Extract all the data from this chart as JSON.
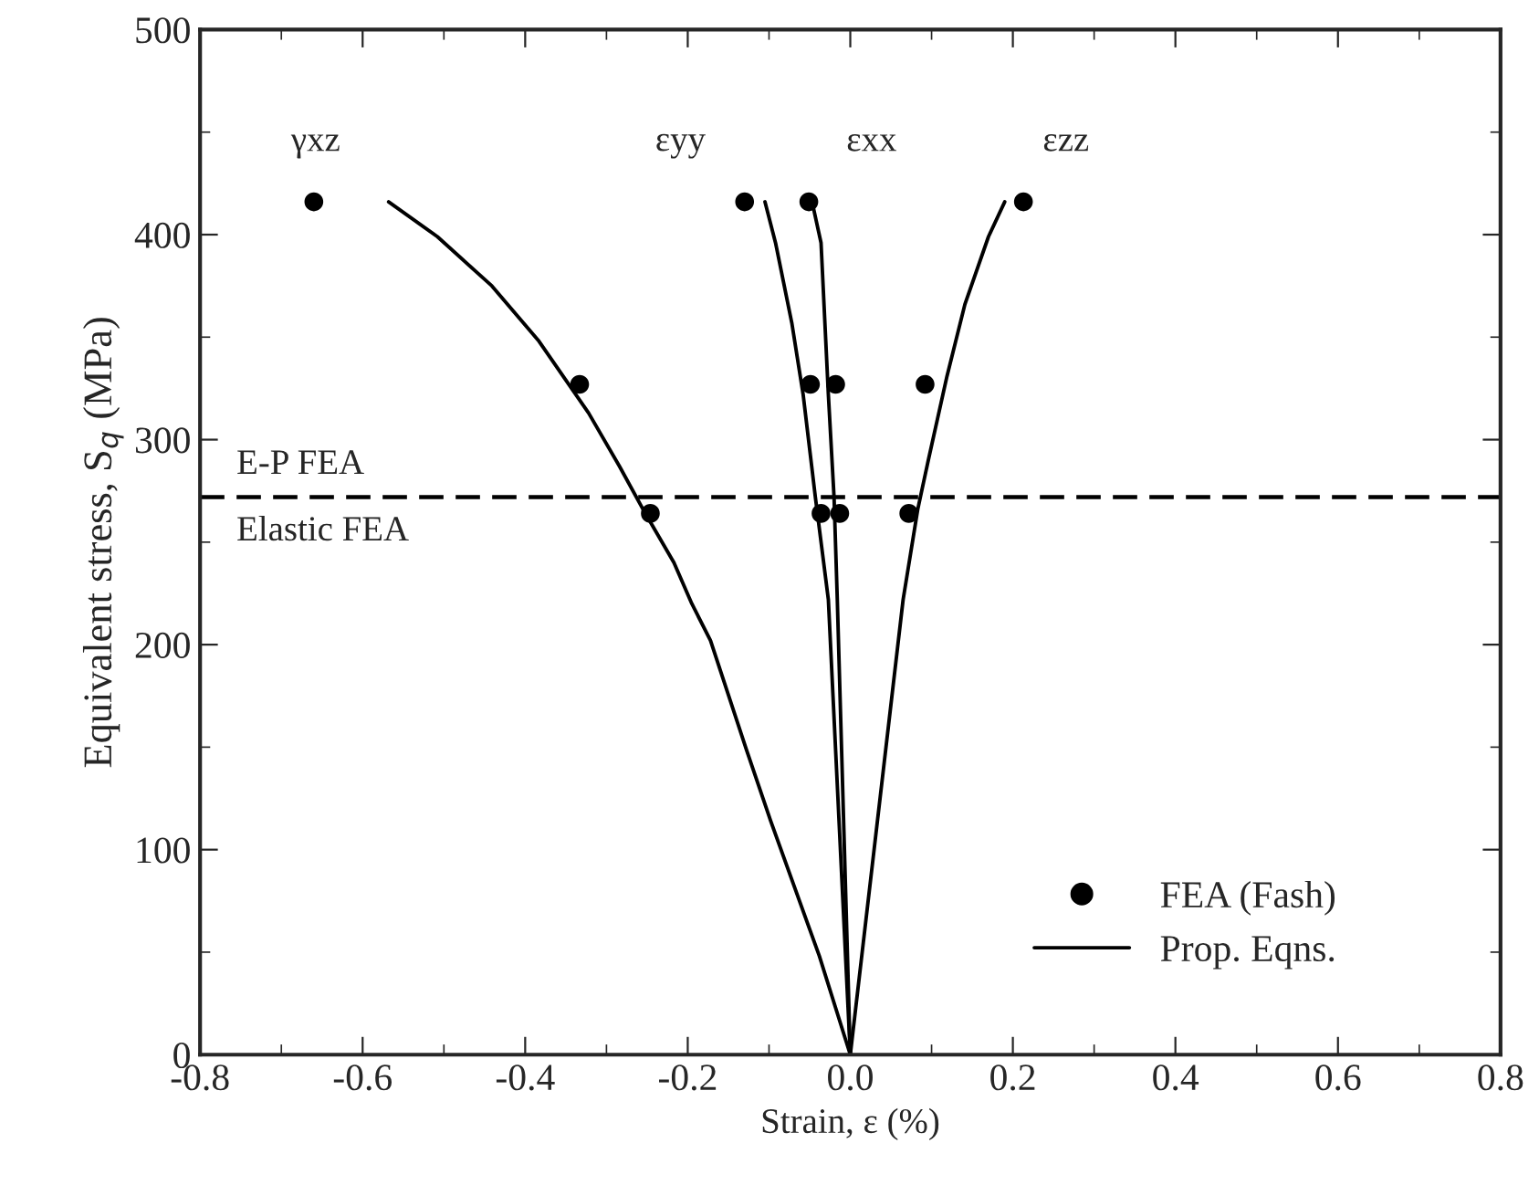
{
  "chart_data": {
    "type": "line",
    "xlabel": "Strain, ε (%)",
    "ylabel": "Equivalent stress, S$_{q}$ (MPa)",
    "xlim": [
      -0.8,
      0.8
    ],
    "xticks": [
      {
        "value": -0.8,
        "label": "-0.8"
      },
      {
        "value": -0.6,
        "label": "-0.6"
      },
      {
        "value": -0.4,
        "label": "-0.4"
      },
      {
        "value": -0.2,
        "label": "-0.2"
      },
      {
        "value": 0,
        "label": "0.0"
      },
      0.2,
      0.4,
      0.6,
      0.8
    ],
    "ylim": [
      0,
      500
    ],
    "yticks": [
      0,
      100,
      200,
      300,
      400,
      500
    ],
    "grid": false,
    "legend": "bottom right",
    "series": [
      {
        "name": "FEA (Fash)",
        "type": "scatter",
        "marker": "circle",
        "color": "#000000",
        "x": [
          -0.66,
          -0.13,
          -0.051,
          0.213,
          -0.333,
          -0.049,
          -0.018,
          0.092,
          -0.246,
          -0.036,
          -0.013,
          0.072
        ],
        "values": [
          416,
          416,
          416,
          416,
          327,
          327,
          327,
          327,
          264,
          264,
          264,
          264
        ]
      },
      {
        "name": "Prop. Eqns.",
        "line_style": "solid",
        "color": "#000000",
        "x": [
          -0.568,
          -0.508,
          -0.441,
          -0.383,
          -0.322,
          -0.284,
          -0.255,
          -0.217,
          -0.195,
          -0.172,
          -0.128,
          -0.098,
          -0.038,
          0
        ],
        "values": [
          416,
          399,
          375,
          348,
          313,
          287,
          266,
          240,
          220,
          202,
          149,
          114,
          48,
          0
        ]
      },
      {
        "line_style": "solid",
        "color": "#000000",
        "x": [
          -0.105,
          -0.092,
          -0.072,
          -0.058,
          -0.043,
          -0.027,
          0
        ],
        "values": [
          416,
          396,
          357,
          322,
          272,
          222,
          0
        ]
      },
      {
        "line_style": "solid",
        "color": "#000000",
        "x": [
          -0.047,
          -0.036,
          -0.027,
          -0.02,
          -0.016,
          0
        ],
        "values": [
          416,
          396,
          322,
          272,
          222,
          0
        ]
      },
      {
        "line_style": "solid",
        "color": "#000000",
        "x": [
          0.19,
          0.17,
          0.141,
          0.119,
          0.096,
          0.083,
          0.065,
          0
        ],
        "values": [
          416,
          399,
          366,
          331,
          290,
          266,
          222,
          0
        ]
      }
    ],
    "ref_lines": [
      {
        "axis": "y",
        "value": 272,
        "color": "#000000",
        "line_style": "dashed"
      }
    ],
    "annotations": [
      "γxz",
      "εyy",
      "εxx",
      "εzz",
      "E-P FEA",
      "Elastic FEA"
    ]
  }
}
